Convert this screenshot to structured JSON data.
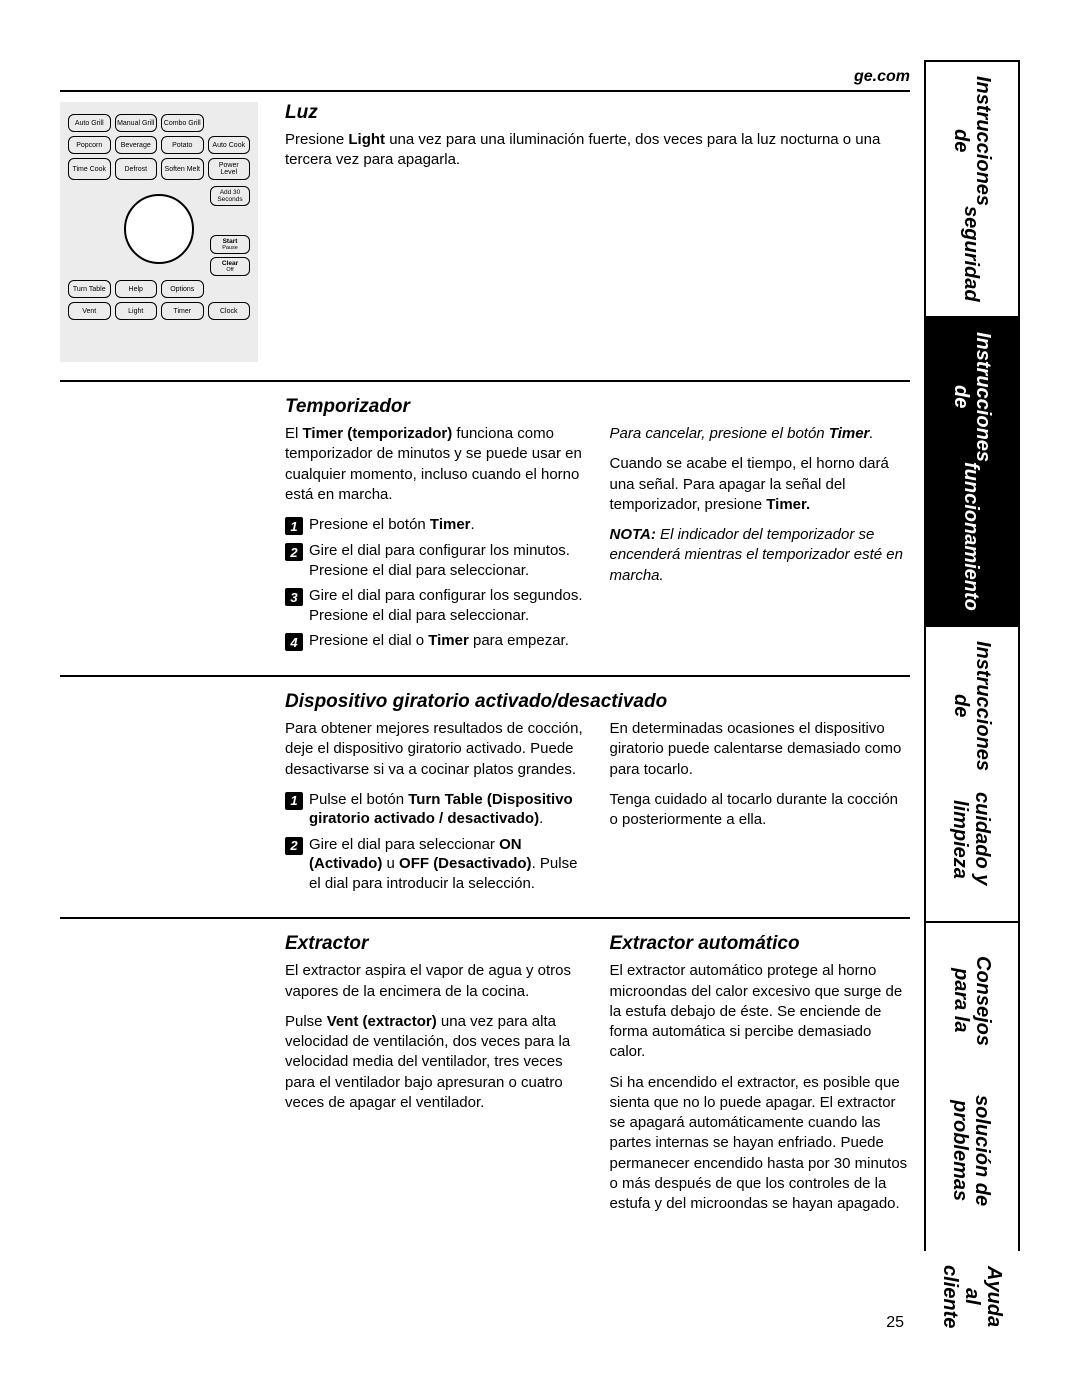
{
  "url": "ge.com",
  "page_number": "25",
  "panel": {
    "row1": [
      "Auto Grill",
      "Manual Grill",
      "Combo Grill"
    ],
    "row2": [
      "Popcorn",
      "Beverage",
      "Potato",
      "Auto Cook"
    ],
    "row3": [
      "Time Cook",
      "Defrost",
      "Soften Melt",
      "Power Level"
    ],
    "add30": "Add 30 Seconds",
    "start": "Start",
    "start_sub": "Pause",
    "clear": "Clear",
    "clear_sub": "Off",
    "row4": [
      "Turn Table",
      "Help",
      "Options"
    ],
    "row5": [
      "Vent",
      "Light",
      "Timer",
      "Clock"
    ]
  },
  "luz": {
    "title": "Luz",
    "body": "Presione <b>Light</b> una vez para una iluminación fuerte, dos veces para la luz nocturna o una tercera vez para apagarla."
  },
  "temporizador": {
    "title": "Temporizador",
    "intro": "El <b>Timer (temporizador)</b> funciona como temporizador de minutos y se puede usar en cualquier momento, incluso cuando el horno está en marcha.",
    "steps": [
      "Presione el botón <b>Timer</b>.",
      "Gire el dial para configurar los minutos. Presione el dial para seleccionar.",
      "Gire el dial para configurar los segundos. Presione el dial para seleccionar.",
      "Presione el dial o <b>Timer</b> para empezar."
    ],
    "cancel": "<i>Para cancelar, presione el botón <b>Timer</b>.</i>",
    "end": "Cuando se acabe el tiempo, el horno dará una señal. Para apagar la señal del temporizador, presione <b>Timer.</b>",
    "note": "<i><b>NOTA:</b> El indicador del temporizador se encenderá mientras el temporizador esté en marcha.</i>"
  },
  "giratorio": {
    "title": "Dispositivo giratorio activado/desactivado",
    "intro": "Para obtener mejores resultados de cocción, deje el dispositivo giratorio activado. Puede desactivarse si va a cocinar platos grandes.",
    "steps": [
      "Pulse el botón <b>Turn Table (Dispositivo giratorio activado / desactivado)</b>.",
      "Gire el dial para seleccionar <b>ON (Activado)</b> u <b>OFF (Desactivado)</b>. Pulse el dial para introducir la selección."
    ],
    "right1": "En determinadas ocasiones el dispositivo giratorio puede calentarse demasiado como para tocarlo.",
    "right2": "Tenga cuidado al tocarlo durante la cocción o posteriormente a ella."
  },
  "extractor": {
    "title": "Extractor",
    "p1": "El extractor aspira el vapor de agua y otros vapores de la encimera de la cocina.",
    "p2": "Pulse <b>Vent (extractor)</b> una vez para alta velocidad de ventilación, dos veces para la velocidad media del ventilador, tres veces para el ventilador bajo apresuran o cuatro veces de apagar el ventilador."
  },
  "auto": {
    "title": "Extractor automático",
    "p1": "El extractor automático protege al horno microondas del calor excesivo que surge de la estufa debajo de éste. Se enciende de forma automática si percibe demasiado calor.",
    "p2": "Si ha encendido el extractor, es posible que sienta que no lo puede apagar. El extractor se apagará automáticamente cuando las partes internas se hayan enfriado. Puede permanecer encendido hasta por 30 minutos o más después de que los controles de la estufa y del microondas se hayan apagado."
  },
  "tabs": [
    {
      "l1": "Instrucciones de",
      "l2": "seguridad",
      "active": false
    },
    {
      "l1": "Instrucciones de",
      "l2": "funcionamiento",
      "active": true
    },
    {
      "l1": "Instrucciones de",
      "l2": "cuidado y limpieza",
      "active": false
    },
    {
      "l1": "Consejos para la",
      "l2": "solución de problemas",
      "active": false
    },
    {
      "l1": "Ayuda al cliente",
      "l2": "",
      "active": false,
      "noborder": true
    }
  ]
}
